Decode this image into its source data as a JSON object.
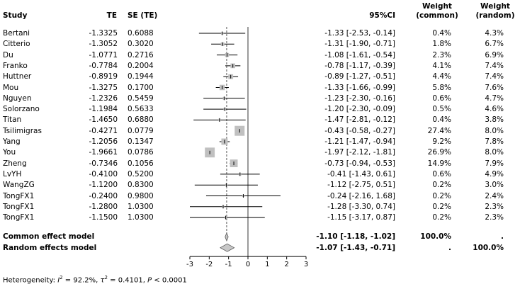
{
  "chart_data": {
    "type": "forest",
    "headers": {
      "study": "Study",
      "te": "TE",
      "se": "SE (TE)",
      "ci": "95%CI",
      "weight_common": [
        "Weight",
        "(common)"
      ],
      "weight_random": [
        "Weight",
        "(random)"
      ]
    },
    "studies": [
      {
        "name": "Bertani",
        "te": "-1.3325",
        "se": "0.6088",
        "ci": "-1.33 [-2.53, -0.14]",
        "wc": "0.4%",
        "wr": "4.3%",
        "est": -1.33,
        "lo": -2.53,
        "hi": -0.14,
        "w": 0.4
      },
      {
        "name": "Citterio",
        "te": "-1.3052",
        "se": "0.3020",
        "ci": "-1.31 [-1.90, -0.71]",
        "wc": "1.8%",
        "wr": "6.7%",
        "est": -1.31,
        "lo": -1.9,
        "hi": -0.71,
        "w": 1.8
      },
      {
        "name": "Du",
        "te": "-1.0771",
        "se": "0.2716",
        "ci": "-1.08 [-1.61, -0.54]",
        "wc": "2.3%",
        "wr": "6.9%",
        "est": -1.08,
        "lo": -1.61,
        "hi": -0.54,
        "w": 2.3
      },
      {
        "name": "Franko",
        "te": "-0.7784",
        "se": "0.2004",
        "ci": "-0.78 [-1.17, -0.39]",
        "wc": "4.1%",
        "wr": "7.4%",
        "est": -0.78,
        "lo": -1.17,
        "hi": -0.39,
        "w": 4.1
      },
      {
        "name": "Huttner",
        "te": "-0.8919",
        "se": "0.1944",
        "ci": "-0.89 [-1.27, -0.51]",
        "wc": "4.4%",
        "wr": "7.4%",
        "est": -0.89,
        "lo": -1.27,
        "hi": -0.51,
        "w": 4.4
      },
      {
        "name": "Mou",
        "te": "-1.3275",
        "se": "0.1700",
        "ci": "-1.33 [-1.66, -0.99]",
        "wc": "5.8%",
        "wr": "7.6%",
        "est": -1.33,
        "lo": -1.66,
        "hi": -0.99,
        "w": 5.8
      },
      {
        "name": "Nguyen",
        "te": "-1.2326",
        "se": "0.5459",
        "ci": "-1.23 [-2.30, -0.16]",
        "wc": "0.6%",
        "wr": "4.7%",
        "est": -1.23,
        "lo": -2.3,
        "hi": -0.16,
        "w": 0.6
      },
      {
        "name": "Solorzano",
        "te": "-1.1984",
        "se": "0.5633",
        "ci": "-1.20 [-2.30, -0.09]",
        "wc": "0.5%",
        "wr": "4.6%",
        "est": -1.2,
        "lo": -2.3,
        "hi": -0.09,
        "w": 0.5
      },
      {
        "name": "Titan",
        "te": "-1.4650",
        "se": "0.6880",
        "ci": "-1.47 [-2.81, -0.12]",
        "wc": "0.4%",
        "wr": "3.8%",
        "est": -1.47,
        "lo": -2.81,
        "hi": -0.12,
        "w": 0.4
      },
      {
        "name": "Tsilimigras",
        "te": "-0.4271",
        "se": "0.0779",
        "ci": "-0.43 [-0.58, -0.27]",
        "wc": "27.4%",
        "wr": "8.0%",
        "est": -0.43,
        "lo": -0.58,
        "hi": -0.27,
        "w": 27.4
      },
      {
        "name": "Yang",
        "te": "-1.2056",
        "se": "0.1347",
        "ci": "-1.21 [-1.47, -0.94]",
        "wc": "9.2%",
        "wr": "7.8%",
        "est": -1.21,
        "lo": -1.47,
        "hi": -0.94,
        "w": 9.2
      },
      {
        "name": "You",
        "te": "-1.9661",
        "se": "0.0786",
        "ci": "-1.97 [-2.12, -1.81]",
        "wc": "26.9%",
        "wr": "8.0%",
        "est": -1.97,
        "lo": -2.12,
        "hi": -1.81,
        "w": 26.9
      },
      {
        "name": "Zheng",
        "te": "-0.7346",
        "se": "0.1056",
        "ci": "-0.73 [-0.94, -0.53]",
        "wc": "14.9%",
        "wr": "7.9%",
        "est": -0.73,
        "lo": -0.94,
        "hi": -0.53,
        "w": 14.9
      },
      {
        "name": "LvYH",
        "te": "-0.4100",
        "se": "0.5200",
        "ci": "-0.41 [-1.43, 0.61]",
        "wc": "0.6%",
        "wr": "4.9%",
        "est": -0.41,
        "lo": -1.43,
        "hi": 0.61,
        "w": 0.6
      },
      {
        "name": "WangZG",
        "te": "-1.1200",
        "se": "0.8300",
        "ci": "-1.12 [-2.75, 0.51]",
        "wc": "0.2%",
        "wr": "3.0%",
        "est": -1.12,
        "lo": -2.75,
        "hi": 0.51,
        "w": 0.2
      },
      {
        "name": "TongFX1",
        "te": "-0.2400",
        "se": "0.9800",
        "ci": "-0.24 [-2.16, 1.68]",
        "wc": "0.2%",
        "wr": "2.4%",
        "est": -0.24,
        "lo": -2.16,
        "hi": 1.68,
        "w": 0.2
      },
      {
        "name": "TongFX1",
        "te": "-1.2800",
        "se": "1.0300",
        "ci": "-1.28 [-3.30, 0.74]",
        "wc": "0.2%",
        "wr": "2.3%",
        "est": -1.28,
        "lo": -3.3,
        "hi": 0.74,
        "w": 0.2
      },
      {
        "name": "TongFX1",
        "te": "-1.1500",
        "se": "1.0300",
        "ci": "-1.15 [-3.17, 0.87]",
        "wc": "0.2%",
        "wr": "2.3%",
        "est": -1.15,
        "lo": -3.17,
        "hi": 0.87,
        "w": 0.2
      }
    ],
    "summary": [
      {
        "name": "Common effect model",
        "ci": "-1.10 [-1.18, -1.02]",
        "wc": "100.0%",
        "wr": ".",
        "est": -1.1,
        "lo": -1.18,
        "hi": -1.02
      },
      {
        "name": "Random effects model",
        "ci": "-1.07 [-1.43, -0.71]",
        "wc": ".",
        "wr": "100.0%",
        "est": -1.07,
        "lo": -1.43,
        "hi": -0.71
      }
    ],
    "xlim": [
      -3,
      3
    ],
    "xticks": [
      -3,
      -2,
      -1,
      0,
      1,
      2,
      3
    ],
    "null_line": 0,
    "heterogeneity": {
      "label": "Heterogeneity: ",
      "i2_value": "92.2%",
      "tau2_value": "0.4101",
      "p_value": "< 0.0001"
    }
  }
}
